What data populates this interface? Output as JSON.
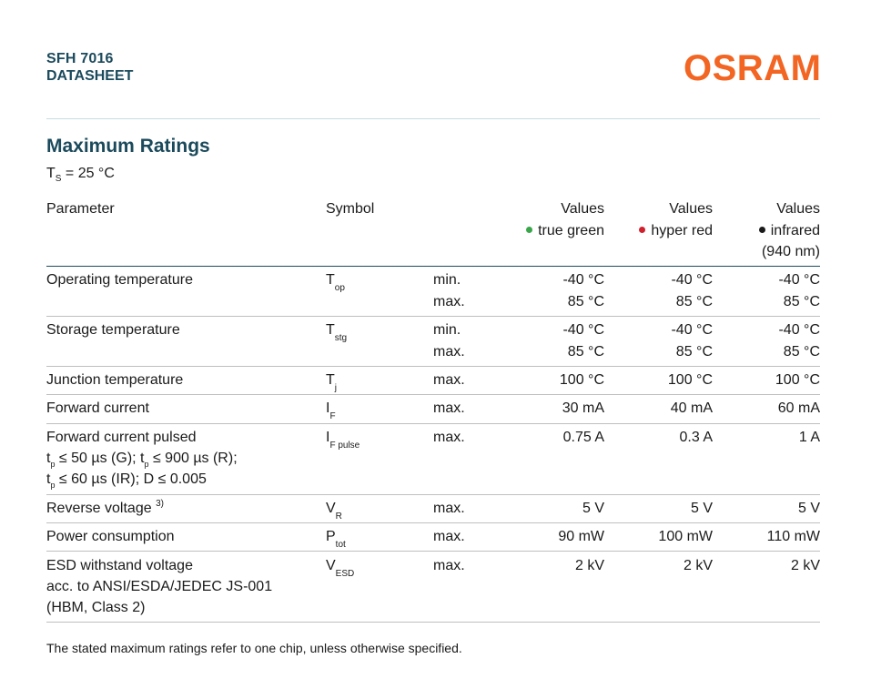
{
  "header": {
    "product": "SFH 7016",
    "doc_type": "DATASHEET",
    "brand": "OSRAM",
    "brand_color": "#f26522",
    "title_color": "#1b4a5c"
  },
  "section": {
    "title": "Maximum Ratings",
    "condition_T": "T",
    "condition_sub": "S",
    "condition_rest": " = 25 °C"
  },
  "table": {
    "headers": {
      "parameter": "Parameter",
      "symbol": "Symbol",
      "values": "Values",
      "col1": "true green",
      "col2": "hyper red",
      "col3_line1": "infrared",
      "col3_line2": "(940 nm)",
      "col1_dot_color": "#3aa64a",
      "col2_dot_color": "#d0202e",
      "col3_dot_color": "#1a1a1a"
    },
    "rows": {
      "op": {
        "param": "Operating temperature",
        "sym": "T",
        "sub": "op",
        "lim1": "min.",
        "lim2": "max.",
        "g1": "-40 °C",
        "g2": "85 °C",
        "r1": "-40 °C",
        "r2": "85 °C",
        "i1": "-40 °C",
        "i2": "85 °C"
      },
      "stg": {
        "param": "Storage temperature",
        "sym": "T",
        "sub": "stg",
        "lim1": "min.",
        "lim2": "max.",
        "g1": "-40 °C",
        "g2": "85 °C",
        "r1": "-40 °C",
        "r2": "85 °C",
        "i1": "-40 °C",
        "i2": "85 °C"
      },
      "junc": {
        "param": "Junction temperature",
        "sym": "T",
        "sub": "j",
        "lim": "max.",
        "g": "100 °C",
        "r": "100 °C",
        "i": "100 °C"
      },
      "fwd": {
        "param": "Forward current",
        "sym": "I",
        "sub": "F",
        "lim": "max.",
        "g": "30 mA",
        "r": "40 mA",
        "i": "60 mA"
      },
      "pulsed": {
        "param": "Forward current pulsed",
        "sym": "I",
        "sub": "F pulse",
        "lim": "max.",
        "g": "0.75 A",
        "r": "0.3 A",
        "i": "1 A",
        "l2_a": "t",
        "l2_a_sub": "p",
        "l2_b": " ≤ 50 µs (G); t",
        "l2_b_sub": "p",
        "l2_c": " ≤ 900 µs (R);",
        "l3_a": "t",
        "l3_a_sub": "p",
        "l3_b": " ≤ 60 µs (IR); D ≤ 0.005"
      },
      "rev": {
        "param": "Reverse voltage",
        "note": "3)",
        "sym": "V",
        "sub": "R",
        "lim": "max.",
        "g": "5 V",
        "r": "5 V",
        "i": "5 V"
      },
      "pow": {
        "param": "Power consumption",
        "sym": "P",
        "sub": "tot",
        "lim": "max.",
        "g": "90 mW",
        "r": "100 mW",
        "i": "110 mW"
      },
      "esd": {
        "param": "ESD withstand voltage",
        "param2": "acc. to ANSI/ESDA/JEDEC JS-001",
        "param3": "(HBM, Class 2)",
        "sym": "V",
        "sub": "ESD",
        "lim": "max.",
        "g": "2 kV",
        "r": "2 kV",
        "i": "2 kV"
      }
    }
  },
  "footnote": "The stated maximum ratings refer to one chip, unless otherwise specified."
}
